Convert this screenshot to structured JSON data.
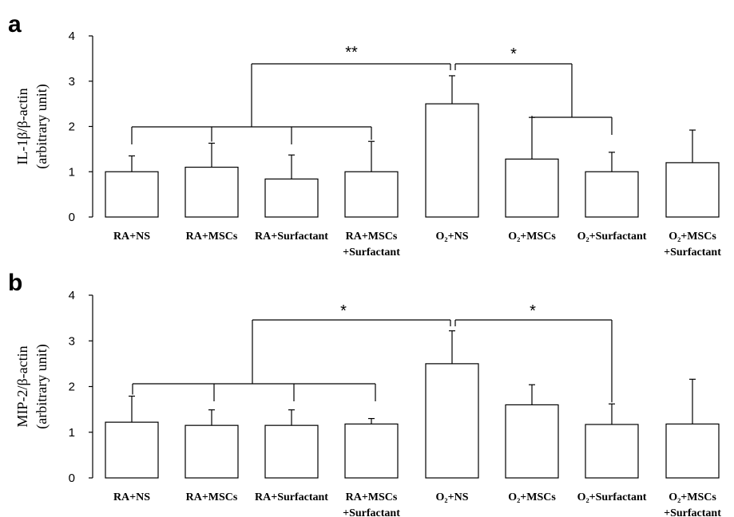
{
  "chart_data": [
    {
      "panel": "a",
      "type": "bar",
      "ylabel_line1": "IL-1β/β-actin",
      "ylabel_line2": "(arbitrary unit)",
      "ylim": [
        0,
        4
      ],
      "yticks": [
        0,
        1,
        2,
        3,
        4
      ],
      "categories": [
        [
          "RA+NS"
        ],
        [
          "RA+MSCs"
        ],
        [
          "RA+Surfactant"
        ],
        [
          "RA+MSCs",
          "+Surfactant"
        ],
        [
          "O₂+NS"
        ],
        [
          "O₂+MSCs"
        ],
        [
          "O₂+Surfactant"
        ],
        [
          "O₂+MSCs",
          "+Surfactant"
        ]
      ],
      "values": [
        1.0,
        1.1,
        0.84,
        1.0,
        2.5,
        1.28,
        1.0,
        1.2
      ],
      "errors": [
        0.35,
        0.53,
        0.53,
        0.67,
        0.62,
        0.92,
        0.43,
        0.72
      ],
      "significance": [
        {
          "label": "**",
          "between": [
            "RA groups",
            "O₂+NS"
          ]
        },
        {
          "label": "*",
          "between": [
            "O₂+NS",
            "O₂+MSCs, O₂+Surfactant"
          ]
        }
      ]
    },
    {
      "panel": "b",
      "type": "bar",
      "ylabel_line1": "MIP-2/β-actin",
      "ylabel_line2": "(arbitrary unit)",
      "ylim": [
        0,
        4
      ],
      "yticks": [
        0,
        1,
        2,
        3,
        4
      ],
      "categories": [
        [
          "RA+NS"
        ],
        [
          "RA+MSCs"
        ],
        [
          "RA+Surfactant"
        ],
        [
          "RA+MSCs",
          "+Surfactant"
        ],
        [
          "O₂+NS"
        ],
        [
          "O₂+MSCs"
        ],
        [
          "O₂+Surfactant"
        ],
        [
          "O₂+MSCs",
          "+Surfactant"
        ]
      ],
      "values": [
        1.22,
        1.15,
        1.15,
        1.18,
        2.5,
        1.6,
        1.17,
        1.18
      ],
      "errors": [
        0.57,
        0.34,
        0.34,
        0.12,
        0.72,
        0.44,
        0.45,
        0.98
      ],
      "significance": [
        {
          "label": "*",
          "between": [
            "RA groups",
            "O₂+NS"
          ]
        },
        {
          "label": "*",
          "between": [
            "O₂+NS",
            "O₂+Surfactant"
          ]
        }
      ]
    }
  ]
}
